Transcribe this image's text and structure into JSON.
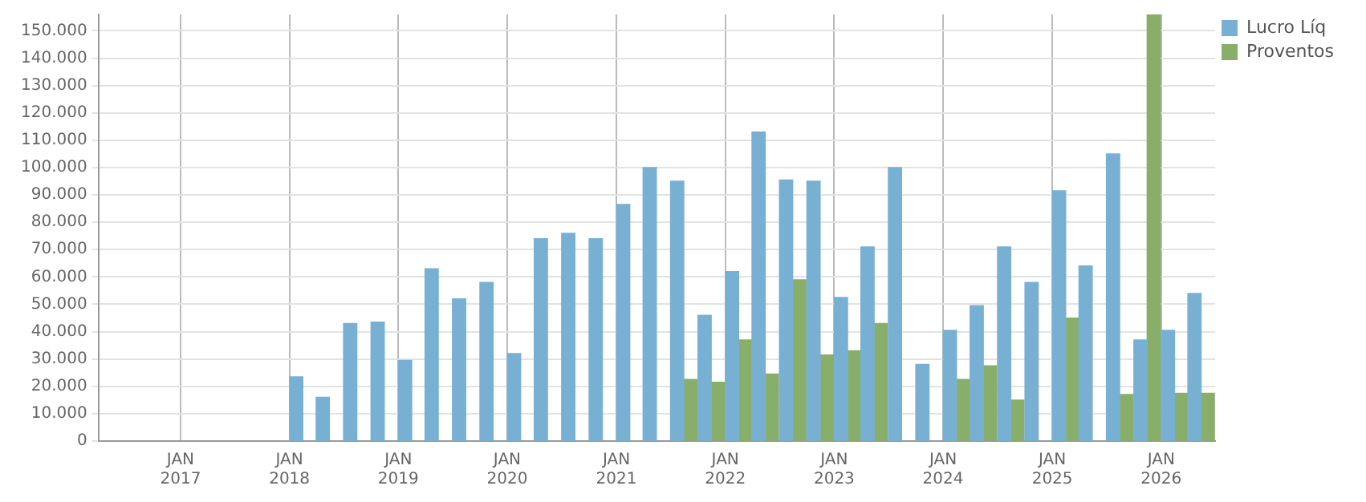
{
  "chart_data": {
    "type": "bar",
    "x": [
      "2018-02-15",
      "2018-05-15",
      "2018-08-15",
      "2018-11-15",
      "2019-02-15",
      "2019-05-15",
      "2019-08-15",
      "2019-11-15",
      "2020-02-15",
      "2020-05-15",
      "2020-08-15",
      "2020-11-15",
      "2021-02-15",
      "2021-05-15",
      "2021-08-15",
      "2021-11-15",
      "2022-02-15",
      "2022-05-15",
      "2022-08-15",
      "2022-11-15",
      "2023-02-15",
      "2023-05-15",
      "2023-08-15",
      "2023-11-15",
      "2024-02-15",
      "2024-05-15",
      "2024-08-15",
      "2024-11-15",
      "2025-02-15",
      "2025-05-15",
      "2025-08-15",
      "2025-11-15",
      "2026-02-15",
      "2026-05-15"
    ],
    "series": [
      {
        "name": "Lucro Líq",
        "color": "#78b0d3",
        "values": [
          23500,
          16000,
          43000,
          43500,
          29500,
          63000,
          52000,
          58000,
          32000,
          74000,
          76000,
          74000,
          86500,
          100000,
          95000,
          46000,
          62000,
          113000,
          95500,
          95000,
          52500,
          71000,
          100000,
          28000,
          40500,
          49500,
          71000,
          58000,
          91500,
          64000,
          105000,
          37000,
          40500,
          54000
        ]
      },
      {
        "name": "Proventos",
        "color": "#88ae6a",
        "values": [
          null,
          null,
          null,
          null,
          null,
          null,
          null,
          null,
          null,
          null,
          null,
          null,
          null,
          null,
          22500,
          21500,
          37000,
          24500,
          59000,
          31500,
          33000,
          43000,
          null,
          null,
          22500,
          27500,
          15000,
          null,
          45000,
          null,
          17000,
          156000,
          17500,
          17500
        ]
      }
    ],
    "xlim": [
      "2016-04-01",
      "2026-07-01"
    ],
    "xticks": [
      {
        "value": "2017-01-01",
        "label": "JAN 2017"
      },
      {
        "value": "2018-01-01",
        "label": "JAN 2018"
      },
      {
        "value": "2019-01-01",
        "label": "JAN 2019"
      },
      {
        "value": "2020-01-01",
        "label": "JAN 2020"
      },
      {
        "value": "2021-01-01",
        "label": "JAN 2021"
      },
      {
        "value": "2022-01-01",
        "label": "JAN 2022"
      },
      {
        "value": "2023-01-01",
        "label": "JAN 2023"
      },
      {
        "value": "2024-01-01",
        "label": "JAN 2024"
      },
      {
        "value": "2025-01-01",
        "label": "JAN 2025"
      },
      {
        "value": "2026-01-01",
        "label": "JAN 2026"
      }
    ],
    "ylim": [
      0,
      156000
    ],
    "yticks": [
      0,
      {
        "value": 10000,
        "label": "10.000"
      },
      {
        "value": 20000,
        "label": "20.000"
      },
      {
        "value": 30000,
        "label": "30.000"
      },
      {
        "value": 40000,
        "label": "40.000"
      },
      {
        "value": 50000,
        "label": "50.000"
      },
      {
        "value": 60000,
        "label": "60.000"
      },
      {
        "value": 70000,
        "label": "70.000"
      },
      {
        "value": 80000,
        "label": "80.000"
      },
      {
        "value": 90000,
        "label": "90.000"
      },
      {
        "value": 100000,
        "label": "100.000"
      },
      {
        "value": 110000,
        "label": "110.000"
      },
      {
        "value": 120000,
        "label": "120.000"
      },
      {
        "value": 130000,
        "label": "130.000"
      },
      {
        "value": 140000,
        "label": "140.000"
      },
      {
        "value": 150000,
        "label": "150.000"
      }
    ],
    "grid": true,
    "legend": "top right"
  }
}
